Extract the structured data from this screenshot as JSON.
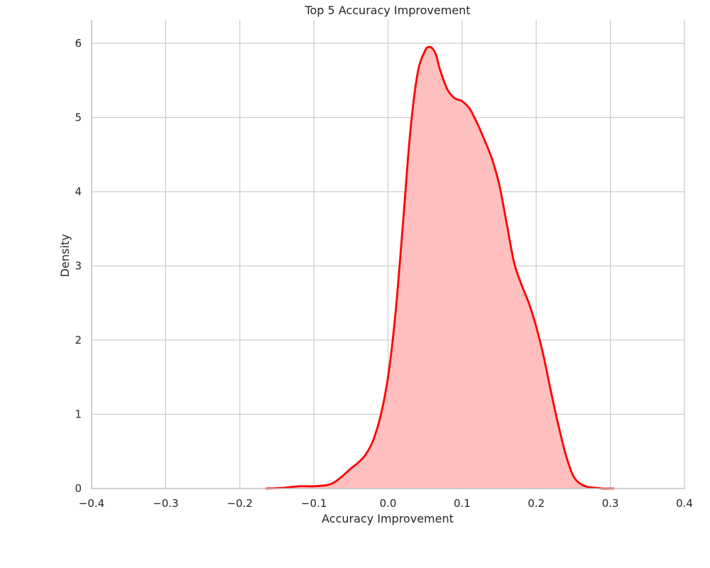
{
  "chart_data": {
    "type": "area",
    "title": "Top 5 Accuracy Improvement",
    "xlabel": "Accuracy Improvement",
    "ylabel": "Density",
    "xlim": [
      -0.4,
      0.4
    ],
    "ylim": [
      0,
      6.25
    ],
    "xticks": [
      -0.4,
      -0.3,
      -0.2,
      -0.1,
      0.0,
      0.1,
      0.2,
      0.3,
      0.4
    ],
    "xtick_labels": [
      "−0.4",
      "−0.3",
      "−0.2",
      "−0.1",
      "0.0",
      "0.1",
      "0.2",
      "0.3",
      "0.4"
    ],
    "yticks": [
      0,
      1,
      2,
      3,
      4,
      5,
      6
    ],
    "ytick_labels": [
      "0",
      "1",
      "2",
      "3",
      "4",
      "5",
      "6"
    ],
    "grid": true,
    "colors": {
      "line": "#ff0000",
      "fill": "#ffbcbc",
      "grid": "#cccccc",
      "axis": "#bdbdbd"
    },
    "series": [
      {
        "x": [
          -0.165,
          -0.14,
          -0.12,
          -0.1,
          -0.08,
          -0.07,
          -0.06,
          -0.05,
          -0.04,
          -0.03,
          -0.02,
          -0.01,
          0.0,
          0.01,
          0.02,
          0.03,
          0.04,
          0.05,
          0.055,
          0.06,
          0.065,
          0.07,
          0.08,
          0.09,
          0.1,
          0.11,
          0.12,
          0.13,
          0.14,
          0.15,
          0.16,
          0.17,
          0.18,
          0.19,
          0.2,
          0.21,
          0.22,
          0.23,
          0.24,
          0.25,
          0.26,
          0.27,
          0.28,
          0.29,
          0.3,
          0.305
        ],
        "y": [
          0.0,
          0.01,
          0.03,
          0.03,
          0.05,
          0.1,
          0.18,
          0.27,
          0.35,
          0.46,
          0.65,
          0.98,
          1.5,
          2.35,
          3.55,
          4.8,
          5.6,
          5.9,
          5.95,
          5.93,
          5.84,
          5.65,
          5.38,
          5.26,
          5.22,
          5.12,
          4.93,
          4.7,
          4.45,
          4.1,
          3.58,
          3.05,
          2.75,
          2.5,
          2.18,
          1.78,
          1.3,
          0.85,
          0.45,
          0.17,
          0.06,
          0.02,
          0.01,
          0.0,
          0.0,
          0.0
        ]
      }
    ]
  }
}
